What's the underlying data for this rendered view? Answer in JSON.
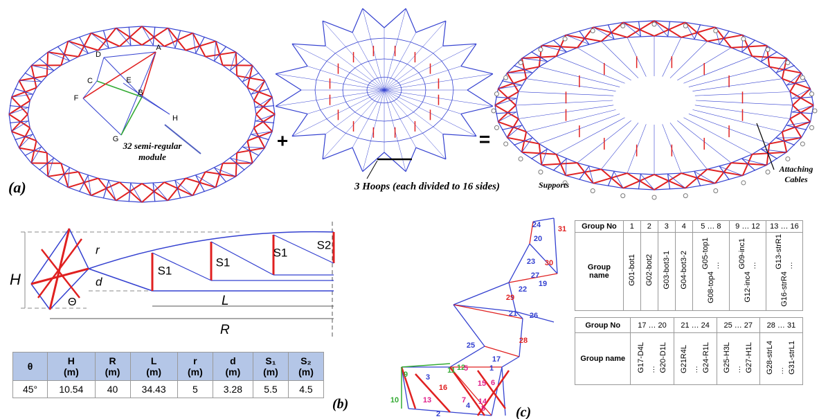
{
  "panel_a": {
    "label": "(a)",
    "plus": "+",
    "equals": "=",
    "module_points": [
      "A",
      "B",
      "C",
      "D",
      "E",
      "F",
      "G",
      "H"
    ],
    "module_label": [
      "32 semi-regular",
      "module"
    ],
    "hoops_label": "3 Hoops (each divided to 16 sides)",
    "supports_label": "Supports",
    "cables_label": [
      "Attaching",
      "Cables"
    ]
  },
  "panel_b": {
    "label": "(b)",
    "dims": {
      "H": "H",
      "r": "r",
      "d": "d",
      "theta": "Θ",
      "L": "L",
      "R": "R"
    },
    "segments": [
      "S1",
      "S1",
      "S1",
      "S2"
    ],
    "table": {
      "header": [
        {
          "symbol": "θ"
        },
        {
          "symbol": "H",
          "unit": "(m)"
        },
        {
          "symbol": "R",
          "unit": "(m)"
        },
        {
          "symbol": "L",
          "unit": "(m)"
        },
        {
          "symbol": "r",
          "unit": "(m)"
        },
        {
          "symbol": "d",
          "unit": "(m)"
        },
        {
          "symbol": "S₁",
          "unit": "(m)"
        },
        {
          "symbol": "S₂",
          "unit": "(m)"
        }
      ],
      "row": [
        "45°",
        "10.54",
        "40",
        "34.43",
        "5",
        "3.28",
        "5.5",
        "4.5"
      ]
    }
  },
  "panel_c": {
    "label": "(c)",
    "member_numbers": [
      "24",
      "31",
      "20",
      "30",
      "23",
      "27",
      "19",
      "22",
      "29",
      "26",
      "21",
      "28",
      "25",
      "17",
      "12",
      "9",
      "11",
      "5",
      "1",
      "3",
      "16",
      "13",
      "15",
      "6",
      "10",
      "7",
      "14",
      "4",
      "8",
      "2"
    ],
    "tables": [
      {
        "row_labels": [
          "Group No",
          "Group name"
        ],
        "cells": [
          {
            "no": "1",
            "names": [
              "G01-bot1"
            ]
          },
          {
            "no": "2",
            "names": [
              "G02-bot2"
            ]
          },
          {
            "no": "3",
            "names": [
              "G03-bot3-1"
            ]
          },
          {
            "no": "4",
            "names": [
              "G04-bot3-2"
            ]
          },
          {
            "no": "5 … 8",
            "names": [
              "G05-top1",
              "…",
              "G08-top4"
            ]
          },
          {
            "no": "9 … 12",
            "names": [
              "G09-inc1",
              "…",
              "G12-inc4"
            ]
          },
          {
            "no": "13 … 16",
            "names": [
              "G13-strR1",
              "…",
              "G16-strR4"
            ]
          }
        ]
      },
      {
        "row_labels": [
          "Group No",
          "Group name"
        ],
        "cells": [
          {
            "no": "17 … 20",
            "names": [
              "G17-D4L",
              "…",
              "G20-D1L"
            ]
          },
          {
            "no": "21 … 24",
            "names": [
              "G21R4L",
              "…",
              "G24-R1L"
            ]
          },
          {
            "no": "25 … 27",
            "names": [
              "G25-H3L",
              "…",
              "G27-H1L"
            ]
          },
          {
            "no": "28 … 31",
            "names": [
              "G28-strL4",
              "…",
              "G31-strL1"
            ]
          }
        ]
      }
    ]
  }
}
